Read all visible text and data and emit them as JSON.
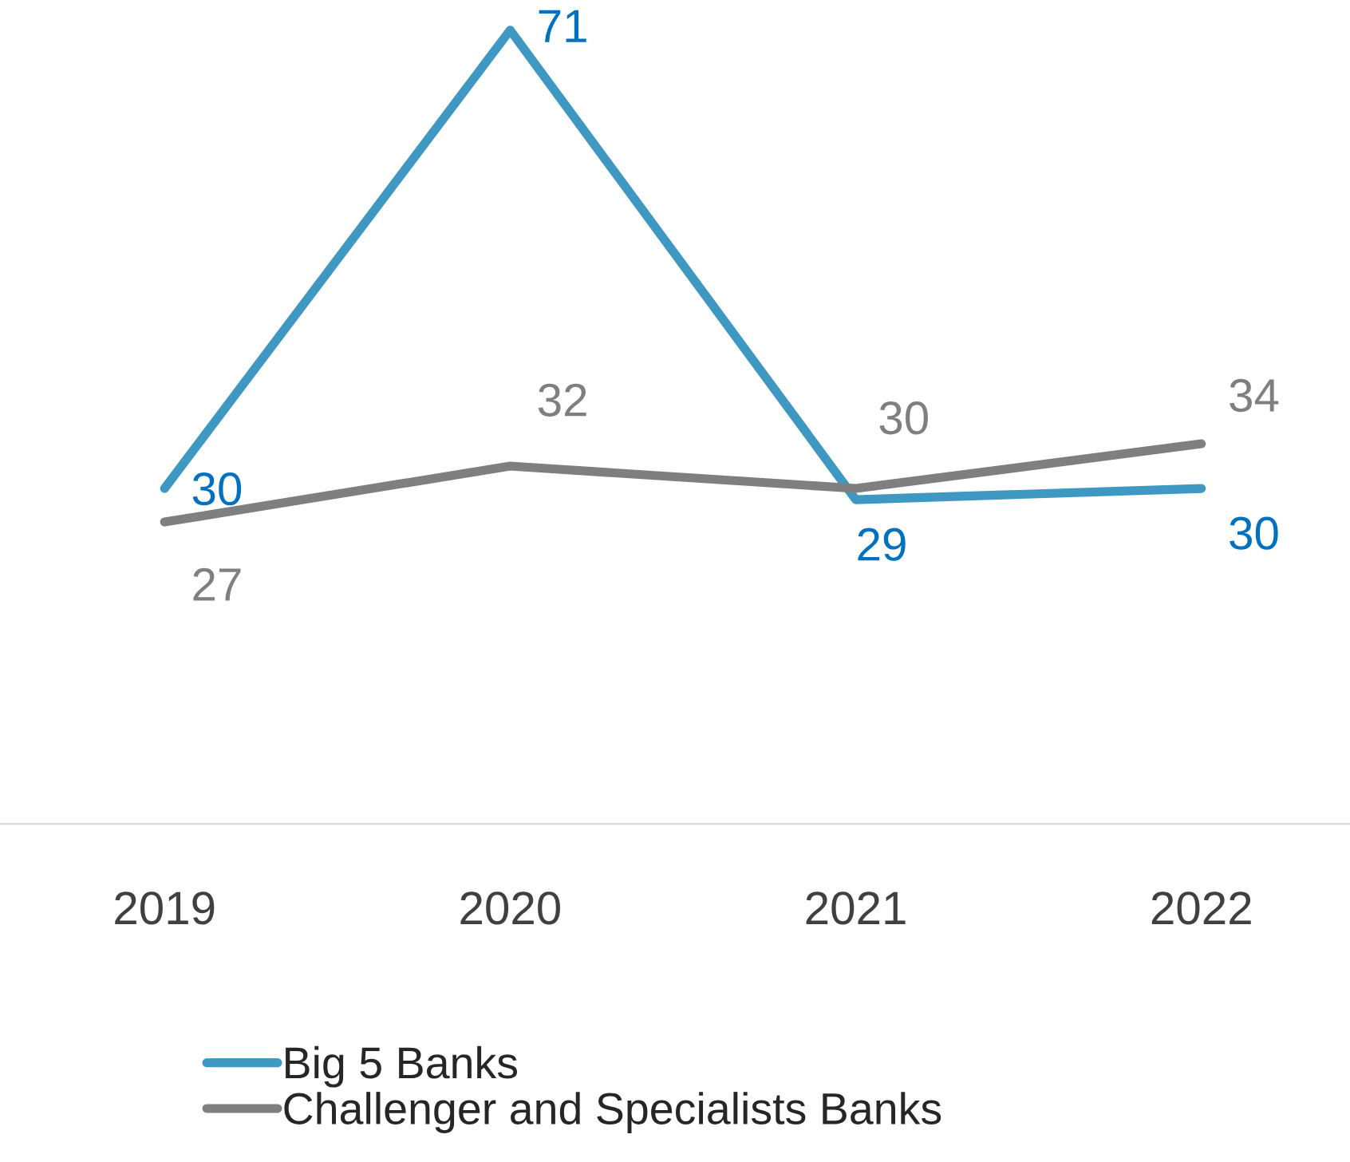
{
  "chart_data": {
    "type": "line",
    "categories": [
      "2019",
      "2020",
      "2021",
      "2022"
    ],
    "series": [
      {
        "name": "Big 5 Banks",
        "color": "#3f98c1",
        "values": [
          30,
          71,
          29,
          30
        ]
      },
      {
        "name": "Challenger and Specialists Banks",
        "color": "#7f7f7f",
        "values": [
          27,
          32,
          30,
          34
        ]
      }
    ],
    "data_labels": true,
    "legend": "bottom",
    "grid": false,
    "tick_labels": "x",
    "marker": "none",
    "line_style": "solid"
  }
}
